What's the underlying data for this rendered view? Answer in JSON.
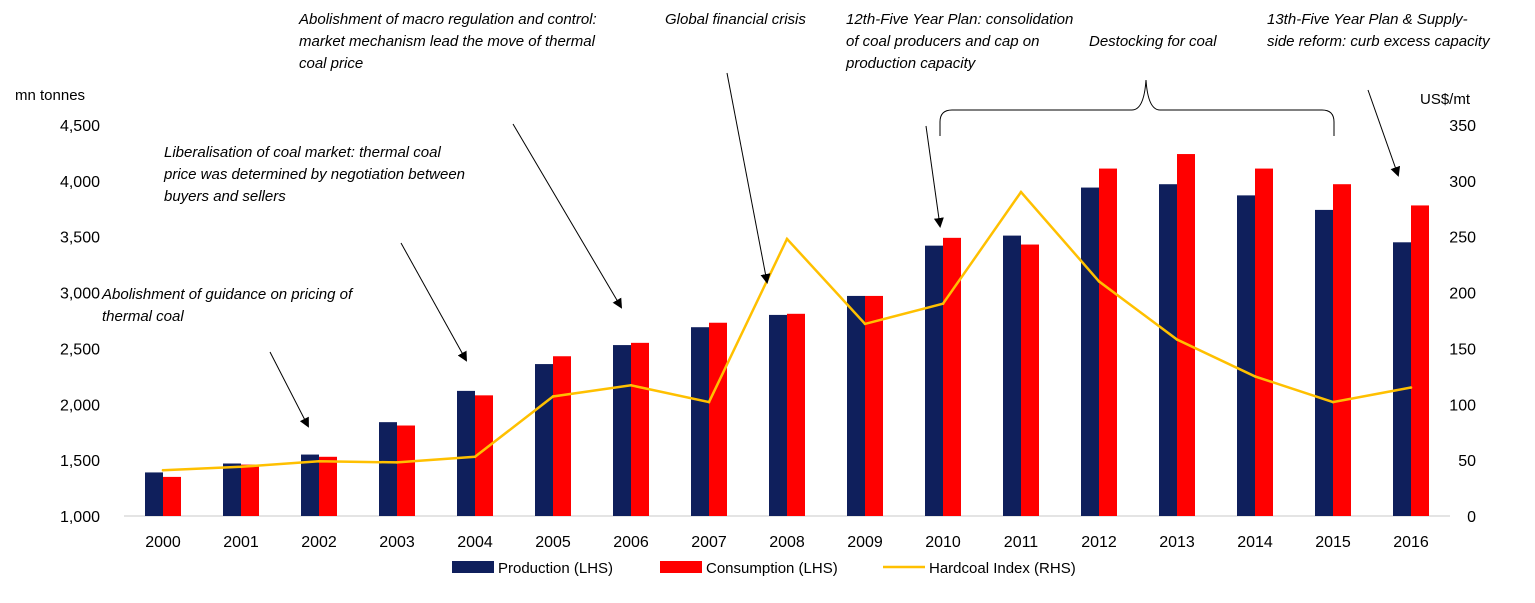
{
  "chart_data": {
    "type": "bar",
    "categories": [
      "2000",
      "2001",
      "2002",
      "2003",
      "2004",
      "2005",
      "2006",
      "2007",
      "2008",
      "2009",
      "2010",
      "2011",
      "2012",
      "2013",
      "2014",
      "2015",
      "2016"
    ],
    "series": [
      {
        "name": "Production (LHS)",
        "kind": "bar",
        "axis": "left",
        "color": "#0f1f5c",
        "values": [
          1390,
          1470,
          1550,
          1840,
          2120,
          2360,
          2530,
          2690,
          2800,
          2970,
          3420,
          3510,
          3940,
          3970,
          3870,
          3740,
          3450
        ]
      },
      {
        "name": "Consumption (LHS)",
        "kind": "bar",
        "axis": "left",
        "color": "#ff0000",
        "values": [
          1350,
          1460,
          1530,
          1810,
          2080,
          2430,
          2550,
          2730,
          2810,
          2970,
          3490,
          3430,
          4110,
          4240,
          4110,
          3970,
          3780
        ]
      },
      {
        "name": "Hardcoal Index (RHS)",
        "kind": "line",
        "axis": "right",
        "color": "#ffc000",
        "values": [
          41,
          44,
          49,
          48,
          53,
          107,
          117,
          102,
          248,
          172,
          190,
          290,
          210,
          158,
          125,
          102,
          115
        ]
      }
    ],
    "left_axis": {
      "label": "mn tonnes",
      "ylim": [
        1000,
        4500
      ],
      "ticks": [
        "1,000",
        "1,500",
        "2,000",
        "2,500",
        "3,000",
        "3,500",
        "4,000",
        "4,500"
      ]
    },
    "right_axis": {
      "label": "US$/mt",
      "ylim": [
        0,
        350
      ],
      "ticks": [
        "0",
        "50",
        "100",
        "150",
        "200",
        "250",
        "300",
        "350"
      ]
    },
    "grid": false,
    "legend_position": "bottom",
    "annotations": [
      {
        "id": "a1",
        "lines": [
          "Abolishment of guidance on pricing of",
          "thermal coal"
        ]
      },
      {
        "id": "a2",
        "lines": [
          "Liberalisation of coal market: thermal coal",
          "price was determined by negotiation between",
          "buyers and sellers"
        ]
      },
      {
        "id": "a3",
        "lines": [
          "Abolishment of macro regulation and control:",
          "market mechanism lead the move of thermal",
          "coal price"
        ]
      },
      {
        "id": "a4",
        "lines": [
          "Global financial crisis"
        ]
      },
      {
        "id": "a5",
        "lines": [
          "12th-Five Year Plan: consolidation",
          "of coal producers and cap on",
          "production capacity"
        ]
      },
      {
        "id": "a6",
        "lines": [
          "Destocking for coal"
        ]
      },
      {
        "id": "a7",
        "lines": [
          "13th-Five Year Plan & Supply-",
          "side reform: curb excess capacity"
        ]
      }
    ]
  }
}
